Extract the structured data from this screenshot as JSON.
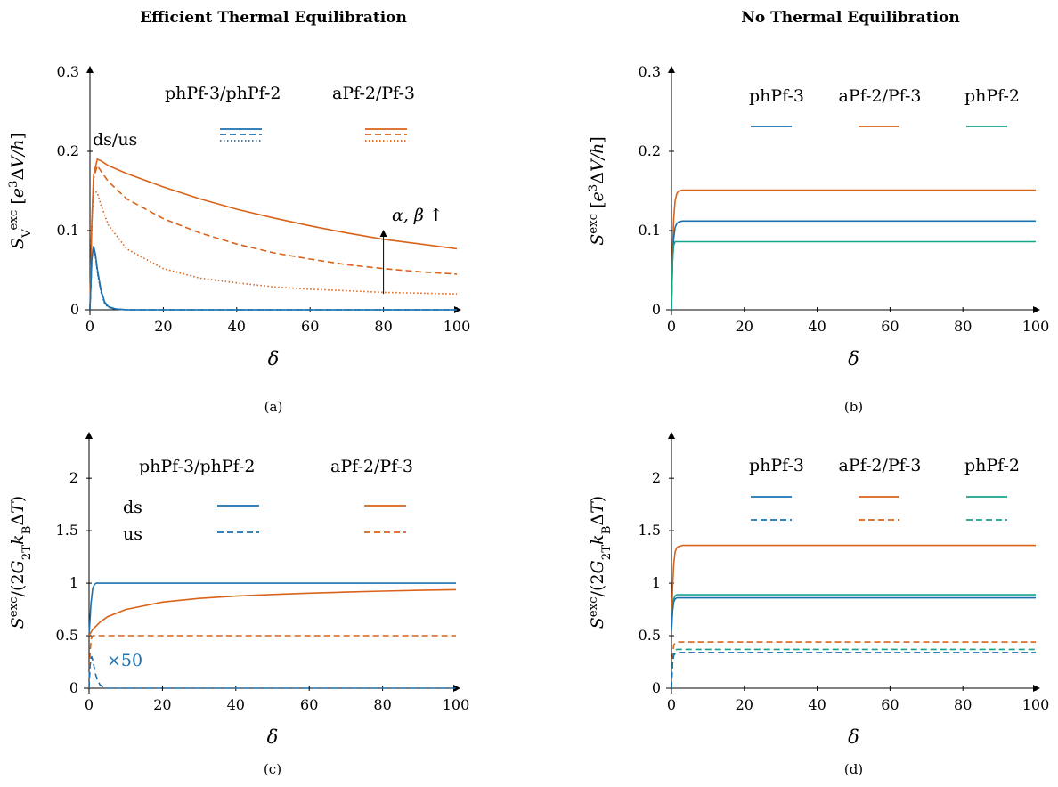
{
  "headings": {
    "left": "Efficient Thermal Equilibration",
    "right": "No Thermal Equilibration"
  },
  "colors": {
    "blue": "#1a70b0",
    "orange": "#d9631a",
    "green": "#17a38a"
  },
  "chart_data": [
    {
      "panel": "a",
      "caption": "(a)",
      "type": "line",
      "xlabel": "δ",
      "ylabel": "S_V^exc [e^3 ΔV/h]",
      "xlim": [
        0,
        100
      ],
      "ylim": [
        0,
        0.3
      ],
      "xticks": [
        0,
        20,
        40,
        60,
        80,
        100
      ],
      "yticks": [
        0,
        0.1,
        0.2,
        0.3
      ],
      "legend": {
        "columns": [
          "phPf-3/phPf-2",
          "aPf-2/Pf-3"
        ],
        "row_label": "ds/us",
        "column_colors": [
          "blue",
          "orange"
        ]
      },
      "annotation": {
        "text": "α, β ↑",
        "x": 80,
        "y_from": 0.02,
        "y_to": 0.1
      },
      "series": [
        {
          "group": "aPf-2/Pf-3",
          "color": "orange",
          "style": "solid",
          "x": [
            0,
            0.5,
            1,
            2,
            3,
            5,
            10,
            20,
            30,
            40,
            50,
            60,
            70,
            80,
            90,
            100
          ],
          "values": [
            0,
            0.11,
            0.17,
            0.19,
            0.188,
            0.182,
            0.172,
            0.155,
            0.14,
            0.127,
            0.116,
            0.106,
            0.097,
            0.089,
            0.083,
            0.077
          ]
        },
        {
          "group": "aPf-2/Pf-3",
          "color": "orange",
          "style": "dashed",
          "x": [
            0,
            0.5,
            1,
            2,
            3,
            5,
            10,
            20,
            30,
            40,
            50,
            60,
            70,
            80,
            90,
            100
          ],
          "values": [
            0,
            0.11,
            0.165,
            0.182,
            0.175,
            0.162,
            0.14,
            0.115,
            0.097,
            0.083,
            0.072,
            0.064,
            0.057,
            0.052,
            0.048,
            0.045
          ]
        },
        {
          "group": "aPf-2/Pf-3",
          "color": "orange",
          "style": "dotted",
          "x": [
            0,
            0.5,
            1,
            2,
            3,
            5,
            10,
            20,
            30,
            40,
            50,
            60,
            70,
            80,
            90,
            100
          ],
          "values": [
            0,
            0.11,
            0.15,
            0.148,
            0.132,
            0.107,
            0.077,
            0.052,
            0.04,
            0.034,
            0.029,
            0.026,
            0.024,
            0.022,
            0.021,
            0.02
          ]
        },
        {
          "group": "phPf-3/phPf-2",
          "color": "blue",
          "style": "solid",
          "x": [
            0,
            0.5,
            1,
            1.5,
            2,
            3,
            4,
            5,
            7,
            10,
            20,
            50,
            100
          ],
          "values": [
            0,
            0.065,
            0.08,
            0.07,
            0.052,
            0.025,
            0.01,
            0.004,
            0.001,
            0,
            0,
            0,
            0
          ]
        },
        {
          "group": "phPf-3/phPf-2",
          "color": "blue",
          "style": "dashed",
          "x": [
            0,
            0.5,
            1,
            1.5,
            2,
            3,
            4,
            5,
            7,
            10,
            20,
            50,
            100
          ],
          "values": [
            0,
            0.064,
            0.079,
            0.068,
            0.05,
            0.023,
            0.009,
            0.003,
            0.001,
            0,
            0,
            0,
            0
          ]
        },
        {
          "group": "phPf-3/phPf-2",
          "color": "blue",
          "style": "dotted",
          "x": [
            0,
            0.5,
            1,
            1.5,
            2,
            3,
            4,
            5,
            7,
            10,
            20,
            50,
            100
          ],
          "values": [
            0,
            0.063,
            0.078,
            0.066,
            0.048,
            0.022,
            0.008,
            0.003,
            0.001,
            0,
            0,
            0,
            0
          ]
        }
      ]
    },
    {
      "panel": "b",
      "caption": "(b)",
      "type": "line",
      "xlabel": "δ",
      "ylabel": "S^exc [e^3 ΔV/h]",
      "xlim": [
        0,
        100
      ],
      "ylim": [
        0,
        0.3
      ],
      "xticks": [
        0,
        20,
        40,
        60,
        80,
        100
      ],
      "yticks": [
        0,
        0.1,
        0.2,
        0.3
      ],
      "legend": {
        "columns": [
          "phPf-3",
          "aPf-2/Pf-3",
          "phPf-2"
        ],
        "column_colors": [
          "blue",
          "orange",
          "green"
        ]
      },
      "series": [
        {
          "group": "aPf-2/Pf-3",
          "color": "orange",
          "style": "solid",
          "x": [
            0,
            0.3,
            0.6,
            1,
            1.5,
            2,
            3,
            5,
            100
          ],
          "values": [
            0,
            0.075,
            0.115,
            0.138,
            0.147,
            0.15,
            0.151,
            0.151,
            0.151
          ]
        },
        {
          "group": "phPf-3",
          "color": "blue",
          "style": "solid",
          "x": [
            0,
            0.3,
            0.6,
            1,
            1.5,
            2,
            3,
            5,
            100
          ],
          "values": [
            0,
            0.06,
            0.09,
            0.104,
            0.109,
            0.111,
            0.112,
            0.112,
            0.112
          ]
        },
        {
          "group": "phPf-2",
          "color": "green",
          "style": "solid",
          "x": [
            0,
            0.3,
            0.6,
            1,
            1.5,
            2,
            100
          ],
          "values": [
            0,
            0.062,
            0.081,
            0.086,
            0.086,
            0.086,
            0.086
          ]
        }
      ]
    },
    {
      "panel": "c",
      "caption": "(c)",
      "type": "line",
      "xlabel": "δ",
      "ylabel": "S^exc/(2G_2T k_B ΔT)",
      "xlim": [
        0,
        100
      ],
      "ylim": [
        0,
        2.4
      ],
      "xticks": [
        0,
        20,
        40,
        60,
        80,
        100
      ],
      "yticks": [
        0,
        0.5,
        1,
        1.5,
        2
      ],
      "legend": {
        "columns": [
          "phPf-3/phPf-2",
          "aPf-2/Pf-3"
        ],
        "rows": [
          "ds",
          "us"
        ],
        "column_colors": [
          "blue",
          "orange"
        ]
      },
      "annotation": {
        "text": "×50",
        "color": "blue"
      },
      "series": [
        {
          "group": "phPf-3/phPf-2",
          "row": "ds",
          "color": "blue",
          "style": "solid",
          "x": [
            0,
            0.5,
            1,
            1.5,
            2,
            3,
            100
          ],
          "values": [
            0.5,
            0.8,
            0.95,
            0.99,
            1,
            1,
            1
          ]
        },
        {
          "group": "aPf-2/Pf-3",
          "row": "ds",
          "color": "orange",
          "style": "solid",
          "x": [
            0,
            1,
            3,
            5,
            10,
            20,
            30,
            40,
            50,
            60,
            70,
            80,
            90,
            100
          ],
          "values": [
            0.5,
            0.56,
            0.63,
            0.68,
            0.75,
            0.82,
            0.855,
            0.877,
            0.892,
            0.905,
            0.915,
            0.924,
            0.932,
            0.938
          ]
        },
        {
          "group": "aPf-2/Pf-3",
          "row": "us",
          "color": "orange",
          "style": "dashed",
          "x": [
            0,
            0.3,
            0.6,
            1,
            1.5,
            100
          ],
          "values": [
            0,
            0.35,
            0.47,
            0.5,
            0.5,
            0.5
          ]
        },
        {
          "group": "phPf-3/phPf-2",
          "row": "us",
          "color": "blue",
          "style": "dashed",
          "x": [
            0,
            0.3,
            0.7,
            1,
            1.5,
            2,
            3,
            4,
            5,
            100
          ],
          "values": [
            0,
            0.22,
            0.3,
            0.27,
            0.18,
            0.1,
            0.03,
            0.01,
            0,
            0
          ]
        }
      ]
    },
    {
      "panel": "d",
      "caption": "(d)",
      "type": "line",
      "xlabel": "δ",
      "ylabel": "S^exc/(2G_2T k_B ΔT)",
      "xlim": [
        0,
        100
      ],
      "ylim": [
        0,
        2.4
      ],
      "xticks": [
        0,
        20,
        40,
        60,
        80,
        100
      ],
      "yticks": [
        0,
        0.5,
        1,
        1.5,
        2
      ],
      "legend": {
        "columns": [
          "phPf-3",
          "aPf-2/Pf-3",
          "phPf-2"
        ],
        "column_colors": [
          "blue",
          "orange",
          "green"
        ]
      },
      "series": [
        {
          "group": "aPf-2/Pf-3",
          "color": "orange",
          "style": "solid",
          "x": [
            0,
            0.3,
            0.6,
            1,
            1.5,
            2,
            3,
            5,
            100
          ],
          "values": [
            0.55,
            0.95,
            1.18,
            1.3,
            1.34,
            1.35,
            1.36,
            1.36,
            1.36
          ]
        },
        {
          "group": "phPf-2",
          "color": "green",
          "style": "solid",
          "x": [
            0,
            0.3,
            0.6,
            1,
            1.5,
            2,
            3,
            100
          ],
          "values": [
            0.55,
            0.75,
            0.85,
            0.88,
            0.89,
            0.89,
            0.89,
            0.89
          ]
        },
        {
          "group": "phPf-3",
          "color": "blue",
          "style": "solid",
          "x": [
            0,
            0.3,
            0.6,
            1,
            1.5,
            2,
            3,
            100
          ],
          "values": [
            0.55,
            0.73,
            0.82,
            0.85,
            0.86,
            0.86,
            0.86,
            0.86
          ]
        },
        {
          "group": "aPf-2/Pf-3",
          "color": "orange",
          "style": "dashed",
          "x": [
            0,
            0.3,
            0.6,
            1,
            1.5,
            100
          ],
          "values": [
            0,
            0.3,
            0.41,
            0.43,
            0.44,
            0.44
          ]
        },
        {
          "group": "phPf-2",
          "color": "green",
          "style": "dashed",
          "x": [
            0,
            0.3,
            0.6,
            1,
            1.5,
            100
          ],
          "values": [
            0,
            0.25,
            0.34,
            0.36,
            0.37,
            0.37
          ]
        },
        {
          "group": "phPf-3",
          "color": "blue",
          "style": "dashed",
          "x": [
            0,
            0.3,
            0.6,
            1,
            1.5,
            100
          ],
          "values": [
            0,
            0.23,
            0.31,
            0.33,
            0.34,
            0.34
          ]
        }
      ]
    }
  ]
}
